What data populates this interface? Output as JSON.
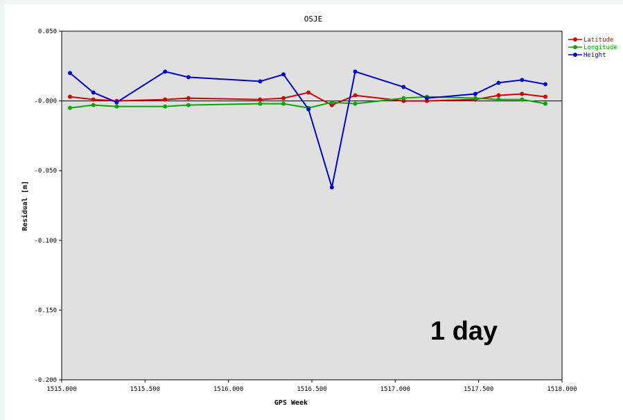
{
  "chart_data": {
    "type": "line",
    "title": "OSJE",
    "xlabel": "GPS Week",
    "ylabel": "Residual [m]",
    "xlim": [
      1515.0,
      1518.0
    ],
    "ylim": [
      -0.2,
      0.05
    ],
    "xticks": [
      "1515.000",
      "1515.500",
      "1516.000",
      "1516.500",
      "1517.000",
      "1517.500",
      "1518.000"
    ],
    "yticks": [
      "0.050",
      "-0.000",
      "-0.050",
      "-0.100",
      "-0.150",
      "-0.200"
    ],
    "grid": false,
    "legend_position": "top-right",
    "annotation": "1 day",
    "series": [
      {
        "name": "Latitude",
        "color": "#cc0000",
        "x": [
          1515.05,
          1515.19,
          1515.33,
          1515.62,
          1515.76,
          1516.19,
          1516.33,
          1516.48,
          1516.62,
          1516.76,
          1517.05,
          1517.19,
          1517.48,
          1517.62,
          1517.76,
          1517.9
        ],
        "y": [
          0.003,
          0.001,
          0.0,
          0.001,
          0.002,
          0.001,
          0.002,
          0.006,
          -0.003,
          0.004,
          0.0,
          0.0,
          0.001,
          0.004,
          0.005,
          0.003
        ]
      },
      {
        "name": "Longitude",
        "color": "#00aa00",
        "x": [
          1515.05,
          1515.19,
          1515.33,
          1515.62,
          1515.76,
          1516.19,
          1516.33,
          1516.48,
          1516.62,
          1516.76,
          1517.05,
          1517.19,
          1517.48,
          1517.62,
          1517.76,
          1517.9
        ],
        "y": [
          -0.005,
          -0.003,
          -0.004,
          -0.004,
          -0.003,
          -0.002,
          -0.002,
          -0.005,
          -0.001,
          -0.002,
          0.002,
          0.003,
          0.002,
          0.001,
          0.001,
          -0.002
        ]
      },
      {
        "name": "Height",
        "color": "#0000cc",
        "x": [
          1515.05,
          1515.19,
          1515.33,
          1515.62,
          1515.76,
          1516.19,
          1516.33,
          1516.48,
          1516.62,
          1516.76,
          1517.05,
          1517.19,
          1517.48,
          1517.62,
          1517.76,
          1517.9
        ],
        "y": [
          0.02,
          0.006,
          -0.001,
          0.021,
          0.017,
          0.014,
          0.019,
          -0.006,
          -0.062,
          0.021,
          0.01,
          0.002,
          0.005,
          0.013,
          0.015,
          0.012
        ]
      }
    ]
  }
}
